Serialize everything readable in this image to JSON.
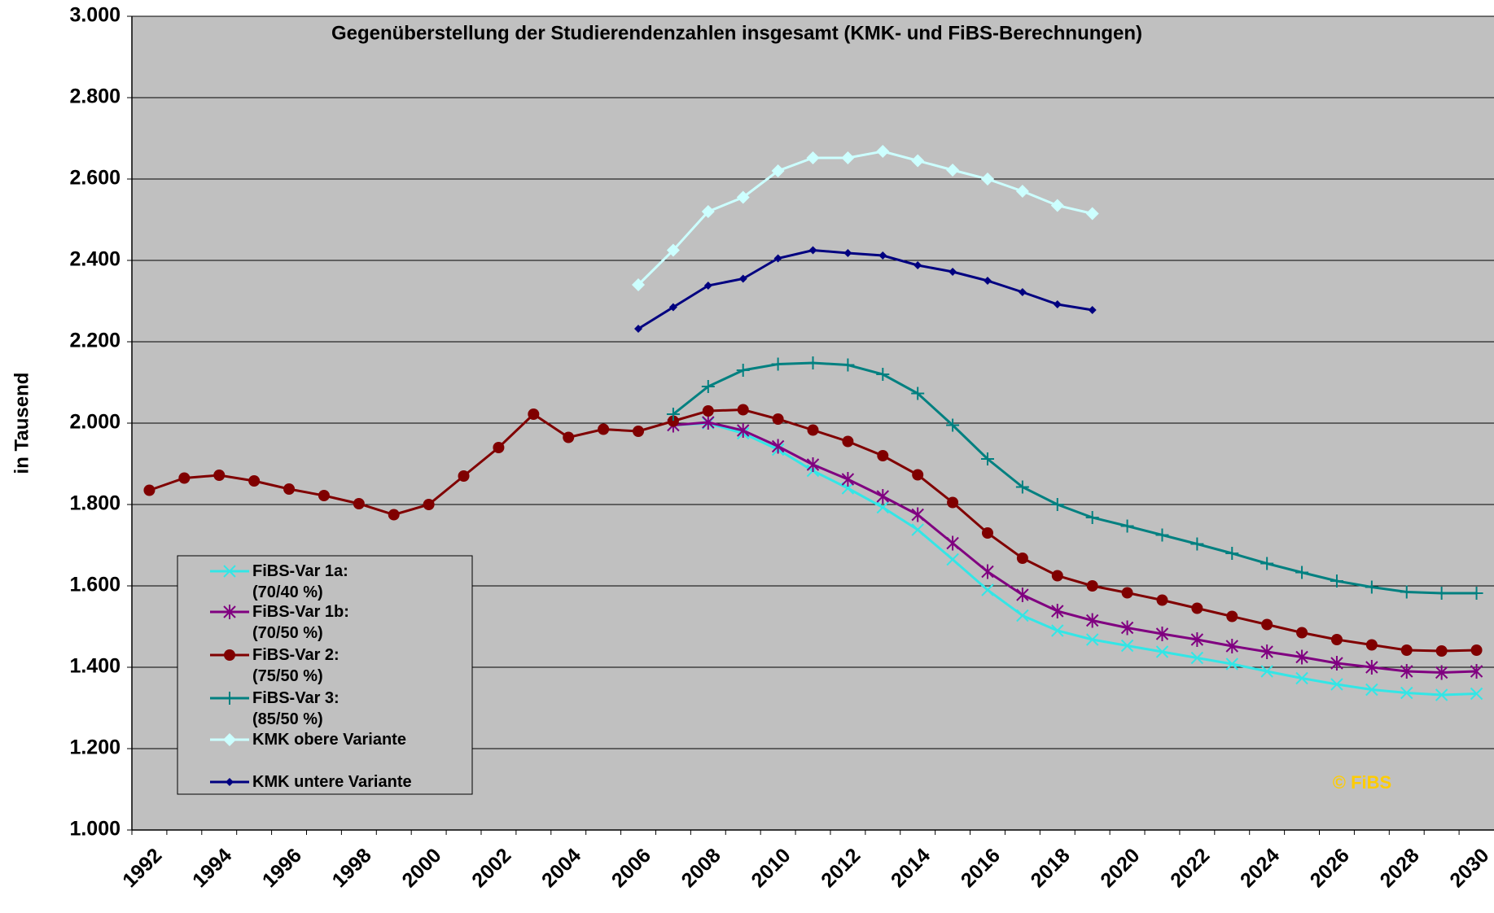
{
  "chart_data": {
    "type": "line",
    "title": "Gegenüberstellung der Studierendenzahlen insgesamt (KMK- und FiBS-Berechnungen)",
    "y_label": "in Tausend",
    "watermark": "© FiBS",
    "categories": [
      "1992",
      null,
      "1994",
      null,
      "1996",
      null,
      "1998",
      null,
      "2000",
      null,
      "2002",
      null,
      "2004",
      null,
      "2006",
      null,
      "2008",
      null,
      "2010",
      null,
      "2012",
      null,
      "2014",
      null,
      "2016",
      null,
      "2018",
      null,
      "2020",
      null,
      "2022",
      null,
      "2024",
      null,
      "2026",
      null,
      "2028",
      null,
      "2030"
    ],
    "ylim": [
      1000,
      3000
    ],
    "yticks": [
      {
        "value": 1000,
        "label": "1.000"
      },
      {
        "value": 1200,
        "label": "1.200"
      },
      {
        "value": 1400,
        "label": "1.400"
      },
      {
        "value": 1600,
        "label": "1.600"
      },
      {
        "value": 1800,
        "label": "1.800"
      },
      {
        "value": 2000,
        "label": "2.000"
      },
      {
        "value": 2200,
        "label": "2.200"
      },
      {
        "value": 2400,
        "label": "2.400"
      },
      {
        "value": 2600,
        "label": "2.600"
      },
      {
        "value": 2800,
        "label": "2.800"
      },
      {
        "value": 3000,
        "label": "3.000"
      }
    ],
    "grid": true,
    "legend": "bottom-left",
    "series": [
      {
        "name": "FiBS-Var 1a:\n(70/40 %)",
        "color": "#33e6e6",
        "marker": "x",
        "values": [
          null,
          null,
          null,
          null,
          null,
          null,
          null,
          null,
          null,
          null,
          null,
          null,
          null,
          null,
          null,
          1995,
          2000,
          1975,
          1935,
          1883,
          1840,
          1793,
          1738,
          1665,
          1590,
          1527,
          1490,
          1468,
          1453,
          1438,
          1423,
          1408,
          1390,
          1373,
          1358,
          1345,
          1337,
          1332,
          1335
        ]
      },
      {
        "name": "FiBS-Var 1b:\n(70/50 %)",
        "color": "#800080",
        "marker": "star",
        "values": [
          null,
          null,
          null,
          null,
          null,
          null,
          null,
          null,
          null,
          null,
          null,
          null,
          null,
          null,
          null,
          1995,
          2002,
          1982,
          1943,
          1898,
          1862,
          1820,
          1775,
          1705,
          1635,
          1578,
          1538,
          1515,
          1497,
          1482,
          1468,
          1452,
          1438,
          1425,
          1410,
          1400,
          1390,
          1387,
          1390
        ]
      },
      {
        "name": "FiBS-Var 2:\n(75/50 %)",
        "color": "#800000",
        "marker": "circle",
        "values": [
          1835,
          1865,
          1872,
          1858,
          1838,
          1822,
          1802,
          1775,
          1800,
          1870,
          1940,
          2022,
          1965,
          1985,
          1980,
          2005,
          2030,
          2033,
          2010,
          1983,
          1955,
          1920,
          1873,
          1805,
          1730,
          1668,
          1625,
          1600,
          1583,
          1565,
          1545,
          1525,
          1505,
          1485,
          1468,
          1455,
          1442,
          1440,
          1442
        ]
      },
      {
        "name": "FiBS-Var 3:\n(85/50 %)",
        "color": "#008080",
        "marker": "plus",
        "values": [
          null,
          null,
          null,
          null,
          null,
          null,
          null,
          null,
          null,
          null,
          null,
          null,
          null,
          null,
          null,
          2022,
          2090,
          2130,
          2145,
          2148,
          2143,
          2120,
          2073,
          1995,
          1912,
          1843,
          1800,
          1768,
          1747,
          1725,
          1703,
          1680,
          1655,
          1633,
          1612,
          1597,
          1585,
          1582,
          1582
        ]
      },
      {
        "name": "KMK obere Variante",
        "color": "#ccffff",
        "marker": "diamond",
        "values": [
          null,
          null,
          null,
          null,
          null,
          null,
          null,
          null,
          null,
          null,
          null,
          null,
          null,
          null,
          2340,
          2425,
          2520,
          2555,
          2620,
          2652,
          2652,
          2668,
          2645,
          2622,
          2600,
          2570,
          2535,
          2515,
          null,
          null,
          null,
          null,
          null,
          null,
          null,
          null,
          null,
          null,
          null
        ]
      },
      {
        "name": "KMK untere Variante",
        "color": "#000080",
        "marker": "smalldiamond",
        "values": [
          null,
          null,
          null,
          null,
          null,
          null,
          null,
          null,
          null,
          null,
          null,
          null,
          null,
          null,
          2232,
          2285,
          2338,
          2355,
          2405,
          2425,
          2418,
          2412,
          2388,
          2372,
          2350,
          2322,
          2292,
          2278,
          null,
          null,
          null,
          null,
          null,
          null,
          null,
          null,
          null,
          null,
          null
        ]
      }
    ]
  }
}
